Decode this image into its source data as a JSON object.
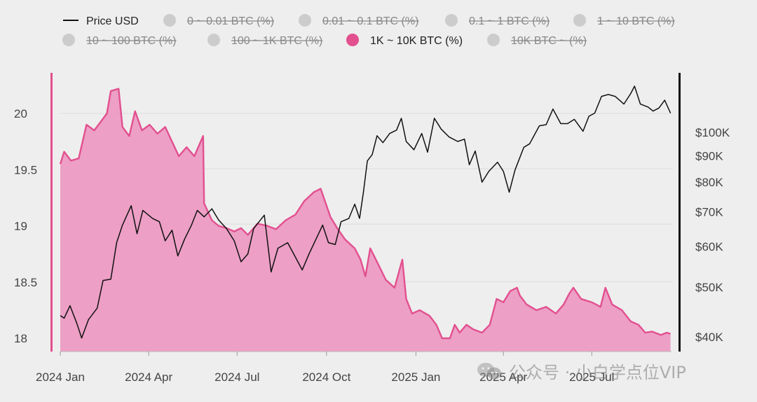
{
  "colors": {
    "background": "#eeeeee",
    "price_line": "#111111",
    "pink_fill": "#ec91bd",
    "pink_stroke": "#e2508f",
    "disabled": "#cccccc",
    "grid": "#dddddd",
    "text": "#444444"
  },
  "legend": [
    {
      "label": "Price USD",
      "type": "line",
      "active": true
    },
    {
      "label": "0 ~ 0.01 BTC (%)",
      "type": "dot",
      "active": false
    },
    {
      "label": "0.01 ~ 0.1 BTC (%)",
      "type": "dot",
      "active": false
    },
    {
      "label": "0.1 ~ 1 BTC (%)",
      "type": "dot",
      "active": false
    },
    {
      "label": "1 ~ 10 BTC (%)",
      "type": "dot",
      "active": false
    },
    {
      "label": "10 ~ 100 BTC (%)",
      "type": "dot",
      "active": false
    },
    {
      "label": "100 ~ 1K BTC (%)",
      "type": "dot",
      "active": false
    },
    {
      "label": "1K ~ 10K BTC (%)",
      "type": "dot",
      "active": true
    },
    {
      "label": "10K BTC ~ (%)",
      "type": "dot",
      "active": false
    }
  ],
  "watermark": "公众号 · 小白学点位VIP",
  "chart_data": {
    "type": "area",
    "x_ticks": [
      "2024 Jan",
      "2024 Apr",
      "2024 Jul",
      "2024 Oct",
      "2025 Jan",
      "2025 Apr",
      "2025 Jul"
    ],
    "x_tick_dates": [
      "2024-01-01",
      "2024-04-01",
      "2024-07-01",
      "2024-10-01",
      "2025-01-01",
      "2025-04-01",
      "2025-07-01"
    ],
    "xlim": [
      "2024-01-01",
      "2025-09-21"
    ],
    "left_axis": {
      "ticks": [
        "18",
        "18.5",
        "19",
        "19.5",
        "20"
      ],
      "ylim": [
        17.95,
        20.45
      ],
      "scale": "linear"
    },
    "right_axis": {
      "ticks": [
        "$40K",
        "$50K",
        "$60K",
        "$70K",
        "$80K",
        "$90K",
        "$100K"
      ],
      "tick_values": [
        40000,
        50000,
        60000,
        70000,
        80000,
        90000,
        100000
      ],
      "scale": "log"
    },
    "grid": true,
    "legend_position": "top",
    "series": [
      {
        "name": "1K ~ 10K BTC (%)",
        "axis": "left",
        "style": "area",
        "points": [
          [
            "2024-01-01",
            19.55
          ],
          [
            "2024-01-05",
            19.66
          ],
          [
            "2024-01-12",
            19.58
          ],
          [
            "2024-01-20",
            19.6
          ],
          [
            "2024-01-28",
            19.9
          ],
          [
            "2024-02-05",
            19.85
          ],
          [
            "2024-02-12",
            19.93
          ],
          [
            "2024-02-18",
            20.0
          ],
          [
            "2024-02-22",
            20.2
          ],
          [
            "2024-03-01",
            20.22
          ],
          [
            "2024-03-05",
            19.88
          ],
          [
            "2024-03-12",
            19.8
          ],
          [
            "2024-03-18",
            20.02
          ],
          [
            "2024-03-25",
            19.85
          ],
          [
            "2024-04-02",
            19.9
          ],
          [
            "2024-04-10",
            19.82
          ],
          [
            "2024-04-18",
            19.88
          ],
          [
            "2024-04-25",
            19.75
          ],
          [
            "2024-05-02",
            19.62
          ],
          [
            "2024-05-10",
            19.7
          ],
          [
            "2024-05-18",
            19.62
          ],
          [
            "2024-05-27",
            19.8
          ],
          [
            "2024-05-28",
            19.2
          ],
          [
            "2024-06-05",
            19.05
          ],
          [
            "2024-06-12",
            19.0
          ],
          [
            "2024-06-20",
            18.98
          ],
          [
            "2024-06-28",
            18.95
          ],
          [
            "2024-07-05",
            18.98
          ],
          [
            "2024-07-12",
            18.92
          ],
          [
            "2024-07-22",
            19.02
          ],
          [
            "2024-08-01",
            19.0
          ],
          [
            "2024-08-10",
            18.97
          ],
          [
            "2024-08-20",
            19.05
          ],
          [
            "2024-08-30",
            19.1
          ],
          [
            "2024-09-08",
            19.22
          ],
          [
            "2024-09-18",
            19.3
          ],
          [
            "2024-09-25",
            19.33
          ],
          [
            "2024-10-05",
            19.08
          ],
          [
            "2024-10-12",
            18.98
          ],
          [
            "2024-10-20",
            18.88
          ],
          [
            "2024-10-30",
            18.8
          ],
          [
            "2024-11-05",
            18.7
          ],
          [
            "2024-11-10",
            18.55
          ],
          [
            "2024-11-15",
            18.8
          ],
          [
            "2024-11-22",
            18.68
          ],
          [
            "2024-12-01",
            18.52
          ],
          [
            "2024-12-10",
            18.45
          ],
          [
            "2024-12-18",
            18.7
          ],
          [
            "2024-12-22",
            18.35
          ],
          [
            "2024-12-28",
            18.22
          ],
          [
            "2025-01-05",
            18.25
          ],
          [
            "2025-01-15",
            18.2
          ],
          [
            "2025-01-22",
            18.12
          ],
          [
            "2025-01-28",
            18.0
          ],
          [
            "2025-02-05",
            18.0
          ],
          [
            "2025-02-10",
            18.12
          ],
          [
            "2025-02-15",
            18.05
          ],
          [
            "2025-02-22",
            18.12
          ],
          [
            "2025-03-01",
            18.08
          ],
          [
            "2025-03-10",
            18.05
          ],
          [
            "2025-03-18",
            18.12
          ],
          [
            "2025-03-25",
            18.35
          ],
          [
            "2025-04-01",
            18.32
          ],
          [
            "2025-04-08",
            18.42
          ],
          [
            "2025-04-15",
            18.45
          ],
          [
            "2025-04-18",
            18.38
          ],
          [
            "2025-04-25",
            18.3
          ],
          [
            "2025-05-05",
            18.25
          ],
          [
            "2025-05-15",
            18.28
          ],
          [
            "2025-05-25",
            18.22
          ],
          [
            "2025-06-02",
            18.3
          ],
          [
            "2025-06-08",
            18.4
          ],
          [
            "2025-06-12",
            18.45
          ],
          [
            "2025-06-20",
            18.35
          ],
          [
            "2025-07-01",
            18.32
          ],
          [
            "2025-07-10",
            18.28
          ],
          [
            "2025-07-15",
            18.45
          ],
          [
            "2025-07-22",
            18.3
          ],
          [
            "2025-08-01",
            18.25
          ],
          [
            "2025-08-10",
            18.15
          ],
          [
            "2025-08-18",
            18.12
          ],
          [
            "2025-08-25",
            18.05
          ],
          [
            "2025-09-01",
            18.06
          ],
          [
            "2025-09-10",
            18.03
          ],
          [
            "2025-09-16",
            18.05
          ],
          [
            "2025-09-20",
            18.04
          ]
        ]
      },
      {
        "name": "Price USD",
        "axis": "right",
        "style": "line",
        "points": [
          [
            "2024-01-01",
            44000
          ],
          [
            "2024-01-05",
            43500
          ],
          [
            "2024-01-11",
            46000
          ],
          [
            "2024-01-18",
            42500
          ],
          [
            "2024-01-23",
            39800
          ],
          [
            "2024-01-30",
            43200
          ],
          [
            "2024-02-08",
            45500
          ],
          [
            "2024-02-14",
            51500
          ],
          [
            "2024-02-22",
            51800
          ],
          [
            "2024-02-28",
            61000
          ],
          [
            "2024-03-05",
            66000
          ],
          [
            "2024-03-14",
            72000
          ],
          [
            "2024-03-20",
            63500
          ],
          [
            "2024-03-26",
            70500
          ],
          [
            "2024-04-05",
            68000
          ],
          [
            "2024-04-12",
            67000
          ],
          [
            "2024-04-18",
            61500
          ],
          [
            "2024-04-25",
            64500
          ],
          [
            "2024-05-01",
            57500
          ],
          [
            "2024-05-08",
            62000
          ],
          [
            "2024-05-15",
            66000
          ],
          [
            "2024-05-21",
            70500
          ],
          [
            "2024-05-28",
            68500
          ],
          [
            "2024-06-05",
            71000
          ],
          [
            "2024-06-12",
            67500
          ],
          [
            "2024-06-20",
            65000
          ],
          [
            "2024-06-28",
            61500
          ],
          [
            "2024-07-05",
            56000
          ],
          [
            "2024-07-12",
            58000
          ],
          [
            "2024-07-18",
            65000
          ],
          [
            "2024-07-29",
            69000
          ],
          [
            "2024-08-05",
            53500
          ],
          [
            "2024-08-12",
            59500
          ],
          [
            "2024-08-22",
            61000
          ],
          [
            "2024-09-06",
            54000
          ],
          [
            "2024-09-13",
            58000
          ],
          [
            "2024-09-27",
            66000
          ],
          [
            "2024-10-03",
            61000
          ],
          [
            "2024-10-10",
            60500
          ],
          [
            "2024-10-16",
            67000
          ],
          [
            "2024-10-24",
            68000
          ],
          [
            "2024-10-30",
            72500
          ],
          [
            "2024-11-04",
            68000
          ],
          [
            "2024-11-08",
            76500
          ],
          [
            "2024-11-12",
            88000
          ],
          [
            "2024-11-17",
            90500
          ],
          [
            "2024-11-22",
            98500
          ],
          [
            "2024-11-28",
            95500
          ],
          [
            "2024-12-05",
            99500
          ],
          [
            "2024-12-12",
            101000
          ],
          [
            "2024-12-17",
            106500
          ],
          [
            "2024-12-22",
            96000
          ],
          [
            "2024-12-30",
            92500
          ],
          [
            "2025-01-07",
            99500
          ],
          [
            "2025-01-13",
            91500
          ],
          [
            "2025-01-20",
            106500
          ],
          [
            "2025-01-27",
            101500
          ],
          [
            "2025-02-04",
            98000
          ],
          [
            "2025-02-13",
            96000
          ],
          [
            "2025-02-20",
            97000
          ],
          [
            "2025-02-25",
            86500
          ],
          [
            "2025-03-03",
            92000
          ],
          [
            "2025-03-10",
            80000
          ],
          [
            "2025-03-17",
            84000
          ],
          [
            "2025-03-26",
            87500
          ],
          [
            "2025-04-01",
            84000
          ],
          [
            "2025-04-07",
            76500
          ],
          [
            "2025-04-13",
            84500
          ],
          [
            "2025-04-22",
            93500
          ],
          [
            "2025-04-28",
            95000
          ],
          [
            "2025-05-08",
            103000
          ],
          [
            "2025-05-15",
            103500
          ],
          [
            "2025-05-22",
            111000
          ],
          [
            "2025-05-30",
            104000
          ],
          [
            "2025-06-06",
            104000
          ],
          [
            "2025-06-13",
            106000
          ],
          [
            "2025-06-22",
            100500
          ],
          [
            "2025-06-28",
            107500
          ],
          [
            "2025-07-04",
            109000
          ],
          [
            "2025-07-11",
            117500
          ],
          [
            "2025-07-18",
            118500
          ],
          [
            "2025-07-25",
            117500
          ],
          [
            "2025-08-03",
            113500
          ],
          [
            "2025-08-10",
            119000
          ],
          [
            "2025-08-14",
            123000
          ],
          [
            "2025-08-20",
            113500
          ],
          [
            "2025-08-28",
            112000
          ],
          [
            "2025-09-02",
            110000
          ],
          [
            "2025-09-08",
            111500
          ],
          [
            "2025-09-14",
            115500
          ],
          [
            "2025-09-20",
            109000
          ]
        ]
      }
    ]
  }
}
